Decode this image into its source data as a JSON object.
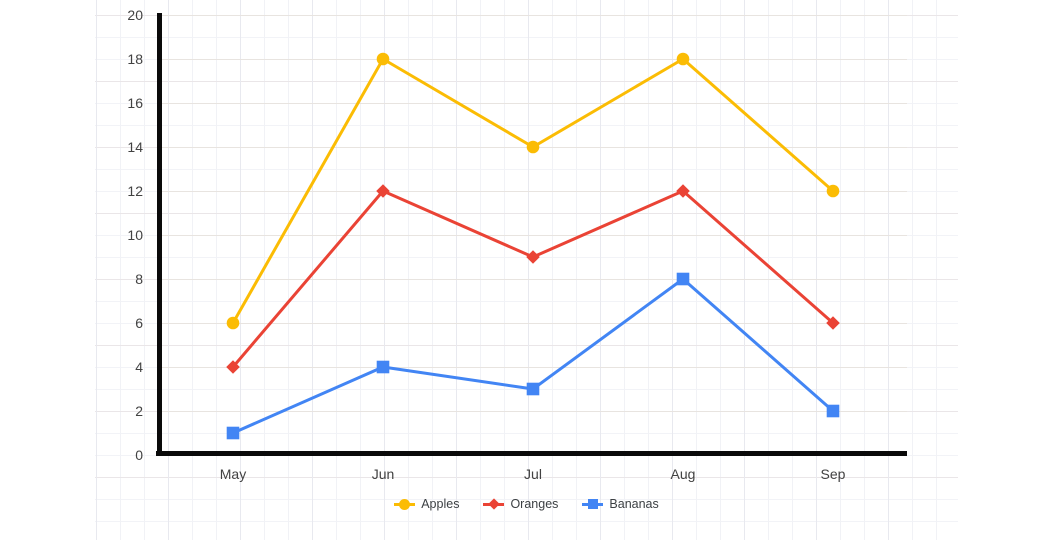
{
  "chart_data": {
    "type": "line",
    "title": "",
    "categories": [
      "May",
      "Jun",
      "Jul",
      "Aug",
      "Sep"
    ],
    "series": [
      {
        "name": "Apples",
        "color": "#FBBC04",
        "marker": "circle",
        "values": [
          6,
          18,
          14,
          18,
          12
        ]
      },
      {
        "name": "Oranges",
        "color": "#EA4335",
        "marker": "diamond",
        "values": [
          4,
          12,
          9,
          12,
          6
        ]
      },
      {
        "name": "Bananas",
        "color": "#4285F4",
        "marker": "square",
        "values": [
          1,
          4,
          3,
          8,
          2
        ]
      }
    ],
    "xlabel": "",
    "ylabel": "",
    "ylim": [
      0,
      20
    ],
    "y_tick_step": 2,
    "y_tick_labels": [
      "0",
      "2",
      "4",
      "6",
      "8",
      "10",
      "12",
      "14",
      "16",
      "18",
      "20"
    ],
    "grid": true,
    "legend_position": "bottom",
    "axis_color": "#0a0a0a",
    "gridline_color": "#e8e4e0",
    "axis_label_color": "#424242",
    "legend_label_color": "#3c4043"
  }
}
